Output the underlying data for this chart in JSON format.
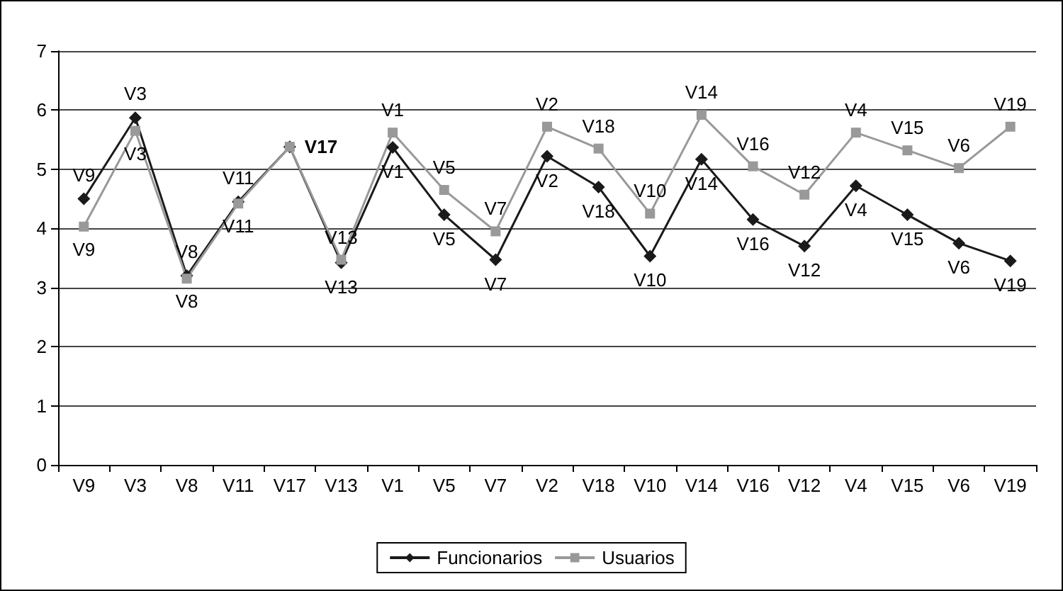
{
  "chart_data": {
    "type": "line",
    "categories": [
      "V9",
      "V3",
      "V8",
      "V11",
      "V17",
      "V13",
      "V1",
      "V5",
      "V7",
      "V2",
      "V18",
      "V10",
      "V14",
      "V16",
      "V12",
      "V4",
      "V15",
      "V6",
      "V19"
    ],
    "series": [
      {
        "name": "Funcionarios",
        "color": "#1a1a1a",
        "marker": "diamond",
        "values": [
          4.5,
          5.87,
          3.2,
          4.45,
          5.38,
          3.42,
          5.37,
          4.23,
          3.47,
          5.22,
          4.7,
          3.53,
          5.17,
          4.15,
          3.7,
          4.72,
          4.23,
          3.75,
          3.45
        ],
        "value_labels": [
          "V9",
          "V3",
          "V8",
          "V11",
          "V17",
          "V13",
          "V1",
          "V5",
          "V7",
          "V2",
          "V18",
          "V10",
          "V14",
          "V16",
          "V12",
          "V4",
          "V15",
          "V6",
          "V19"
        ]
      },
      {
        "name": "Usuarios",
        "color": "#999999",
        "marker": "square",
        "values": [
          4.03,
          5.65,
          3.15,
          4.42,
          5.38,
          3.47,
          5.62,
          4.65,
          3.95,
          5.72,
          5.35,
          4.25,
          5.92,
          5.05,
          4.57,
          5.62,
          5.32,
          5.02,
          5.72
        ],
        "value_labels": [
          "V9",
          "V3",
          "V8",
          "V11",
          null,
          "V13",
          "V1",
          "V5",
          "V7",
          "V2",
          "V18",
          "V10",
          "V14",
          "V16",
          "V12",
          "V4",
          "V15",
          "V6",
          "V19"
        ]
      }
    ],
    "ylim": [
      0,
      7
    ],
    "yticks": [
      0,
      1,
      2,
      3,
      4,
      5,
      6,
      7
    ],
    "grid": "y",
    "legend": "bottom"
  }
}
